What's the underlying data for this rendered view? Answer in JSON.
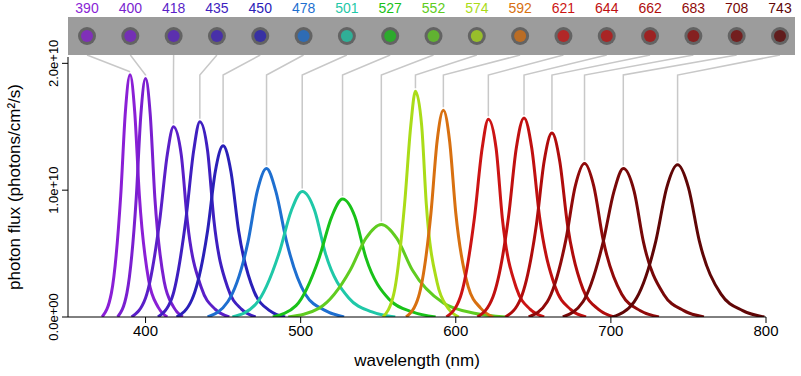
{
  "chart_data": {
    "type": "line",
    "x_label": "wavelength (nm)",
    "y_label": "photon flux (photons/cm²/s)",
    "xlim": [
      350,
      800
    ],
    "xticks": [
      400,
      500,
      600,
      700,
      800
    ],
    "ylim": [
      0,
      20500000000.0
    ],
    "yticks": [
      {
        "value": 0,
        "label": "0.0e+00"
      },
      {
        "value": 10000000000.0,
        "label": "1.0e+10"
      },
      {
        "value": 20000000000.0,
        "label": "2.0e+10"
      }
    ],
    "grid": false,
    "series": [
      {
        "name": "390",
        "color": "#8a1fd6",
        "x": [
          372,
          378,
          384,
          387,
          390,
          393,
          396,
          402,
          408,
          414
        ],
        "values": [
          0,
          1900000000.0,
          9600000000.0,
          16200000000.0,
          19100000000.0,
          16200000000.0,
          9600000000.0,
          2900000000.0,
          800000000.0,
          0
        ]
      },
      {
        "name": "400",
        "color": "#7a1fd0",
        "x": [
          382,
          388,
          394,
          397,
          400,
          403,
          406,
          412,
          418,
          424
        ],
        "values": [
          0,
          1900000000.0,
          9400000000.0,
          16000000000.0,
          18800000000.0,
          16000000000.0,
          9400000000.0,
          2800000000.0,
          800000000.0,
          0
        ]
      },
      {
        "name": "418",
        "color": "#5a1fc8",
        "x": [
          391,
          400,
          409,
          414,
          418,
          423,
          427,
          436,
          445,
          454
        ],
        "values": [
          0,
          1500000000.0,
          7500000000.0,
          12800000000.0,
          15000000000.0,
          12800000000.0,
          7500000000.0,
          2300000000.0,
          600000000.0,
          0
        ]
      },
      {
        "name": "435",
        "color": "#3f1fc0",
        "x": [
          408,
          417,
          426,
          431,
          435,
          440,
          444,
          453,
          462,
          471
        ],
        "values": [
          0,
          1500000000.0,
          7700000000.0,
          13100000000.0,
          15400000000.0,
          13100000000.0,
          7700000000.0,
          2300000000.0,
          600000000.0,
          0
        ]
      },
      {
        "name": "450",
        "color": "#2a20b8",
        "x": [
          420,
          430,
          440,
          445,
          450,
          455,
          460,
          470,
          480,
          490
        ],
        "values": [
          0,
          1400000000.0,
          6800000000.0,
          11500000000.0,
          13500000000.0,
          11500000000.0,
          6800000000.0,
          2000000000.0,
          500000000.0,
          0
        ]
      },
      {
        "name": "478",
        "color": "#1e6fd0",
        "x": [
          440,
          453,
          466,
          472,
          478,
          484,
          491,
          503,
          516,
          528
        ],
        "values": [
          0,
          1200000000.0,
          5900000000.0,
          9900000000.0,
          11700000000.0,
          9900000000.0,
          5900000000.0,
          1800000000.0,
          500000000.0,
          0
        ]
      },
      {
        "name": "501",
        "color": "#1fc8a8",
        "x": [
          456,
          471,
          486,
          494,
          501,
          509,
          516,
          531,
          546,
          561
        ],
        "values": [
          0,
          1000000000.0,
          5000000000.0,
          8400000000.0,
          9900000000.0,
          8400000000.0,
          5000000000.0,
          1500000000.0,
          400000000.0,
          0
        ]
      },
      {
        "name": "527",
        "color": "#19c219",
        "x": [
          482,
          497,
          512,
          520,
          527,
          535,
          542,
          557,
          572,
          587
        ],
        "values": [
          0,
          900000000.0,
          4700000000.0,
          7900000000.0,
          9300000000.0,
          7900000000.0,
          4700000000.0,
          1400000000.0,
          400000000.0,
          0
        ]
      },
      {
        "name": "552",
        "color": "#60cc20",
        "x": [
          492,
          512,
          532,
          542,
          552,
          562,
          572,
          592,
          612,
          632
        ],
        "values": [
          0,
          700000000.0,
          3700000000.0,
          6200000000.0,
          7300000000.0,
          6200000000.0,
          3700000000.0,
          1100000000.0,
          300000000.0,
          0
        ]
      },
      {
        "name": "574",
        "color": "#aadc18",
        "x": [
          553,
          560,
          567,
          571,
          574,
          578,
          581,
          588,
          595,
          602
        ],
        "values": [
          0,
          1800000000.0,
          8900000000.0,
          15100000000.0,
          17800000000.0,
          15100000000.0,
          8900000000.0,
          2700000000.0,
          700000000.0,
          0
        ]
      },
      {
        "name": "592",
        "color": "#d87010",
        "x": [
          568,
          576,
          584,
          588,
          592,
          596,
          600,
          608,
          616,
          624
        ],
        "values": [
          0,
          1600000000.0,
          8200000000.0,
          13900000000.0,
          16300000000.0,
          13900000000.0,
          8200000000.0,
          2400000000.0,
          700000000.0,
          0
        ]
      },
      {
        "name": "621",
        "color": "#cc1414",
        "x": [
          594,
          603,
          612,
          617,
          621,
          626,
          630,
          639,
          648,
          657
        ],
        "values": [
          0,
          1600000000.0,
          7800000000.0,
          13300000000.0,
          15600000000.0,
          13300000000.0,
          7800000000.0,
          2300000000.0,
          600000000.0,
          0
        ]
      },
      {
        "name": "644",
        "color": "#c01010",
        "x": [
          614,
          624,
          634,
          639,
          644,
          649,
          654,
          664,
          674,
          684
        ],
        "values": [
          0,
          1600000000.0,
          7900000000.0,
          13300000000.0,
          15700000000.0,
          13300000000.0,
          7900000000.0,
          2400000000.0,
          600000000.0,
          0
        ]
      },
      {
        "name": "662",
        "color": "#b00c0c",
        "x": [
          632,
          642,
          652,
          657,
          662,
          667,
          672,
          682,
          692,
          702
        ],
        "values": [
          0,
          1500000000.0,
          7300000000.0,
          12300000000.0,
          14500000000.0,
          12300000000.0,
          7300000000.0,
          2200000000.0,
          600000000.0,
          0
        ]
      },
      {
        "name": "683",
        "color": "#900a0a",
        "x": [
          647,
          659,
          671,
          677,
          683,
          689,
          695,
          707,
          719,
          731
        ],
        "values": [
          0,
          1200000000.0,
          6100000000.0,
          10300000000.0,
          12100000000.0,
          10300000000.0,
          6100000000.0,
          1800000000.0,
          500000000.0,
          0
        ]
      },
      {
        "name": "708",
        "color": "#780808",
        "x": [
          669,
          682,
          695,
          702,
          708,
          715,
          721,
          734,
          747,
          760
        ],
        "values": [
          0,
          1200000000.0,
          5900000000.0,
          9900000000.0,
          11700000000.0,
          9900000000.0,
          5900000000.0,
          1800000000.0,
          500000000.0,
          0
        ]
      },
      {
        "name": "743",
        "color": "#600606",
        "x": [
          701,
          715,
          729,
          736,
          743,
          750,
          757,
          771,
          785,
          799
        ],
        "values": [
          0,
          1200000000.0,
          6000000000.0,
          10200000000.0,
          12000000000.0,
          10200000000.0,
          6000000000.0,
          1800000000.0,
          500000000.0,
          0
        ]
      }
    ]
  }
}
